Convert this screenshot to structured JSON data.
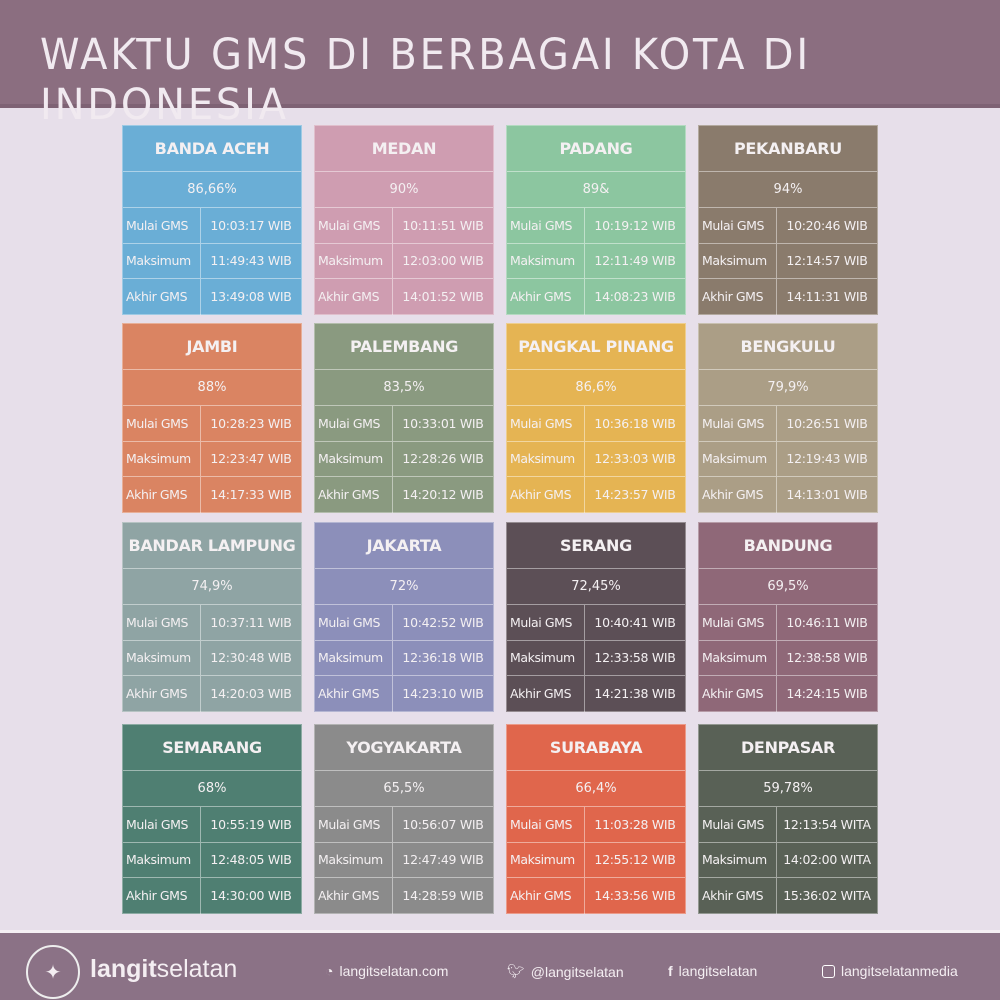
{
  "header": {
    "title": "WAKTU GMS DI BERBAGAI KOTA DI INDONESIA"
  },
  "labels": {
    "start": "Mulai GMS",
    "max": "Maksimum",
    "end": "Akhir GMS"
  },
  "cities": [
    {
      "name": "BANDA ACEH",
      "pct": "86,66%",
      "start": "10:03:17 WIB",
      "max": "11:49:43 WIB",
      "end": "13:49:08 WIB",
      "color": "#6aaed6"
    },
    {
      "name": "MEDAN",
      "pct": "90%",
      "start": "10:11:51 WIB",
      "max": "12:03:00 WIB",
      "end": "14:01:52 WIB",
      "color": "#cf9db1"
    },
    {
      "name": "PADANG",
      "pct": "89&",
      "start": "10:19:12 WIB",
      "max": "12:11:49 WIB",
      "end": "14:08:23 WIB",
      "color": "#8cc6a0"
    },
    {
      "name": "PEKANBARU",
      "pct": "94%",
      "start": "10:20:46 WIB",
      "max": "12:14:57 WIB",
      "end": "14:11:31 WIB",
      "color": "#8a7b6c"
    },
    {
      "name": "JAMBI",
      "pct": "88%",
      "start": "10:28:23 WIB",
      "max": "12:23:47 WIB",
      "end": "14:17:33 WIB",
      "color": "#da8462"
    },
    {
      "name": "PALEMBANG",
      "pct": "83,5%",
      "start": "10:33:01 WIB",
      "max": "12:28:26 WIB",
      "end": "14:20:12 WIB",
      "color": "#8a9a80"
    },
    {
      "name": "PANGKAL PINANG",
      "pct": "86,6%",
      "start": "10:36:18 WIB",
      "max": "12:33:03 WIB",
      "end": "14:23:57 WIB",
      "color": "#e5b453"
    },
    {
      "name": "BENGKULU",
      "pct": "79,9%",
      "start": "10:26:51 WIB",
      "max": "12:19:43 WIB",
      "end": "14:13:01 WIB",
      "color": "#ab9e86"
    },
    {
      "name": "BANDAR LAMPUNG",
      "pct": "74,9%",
      "start": "10:37:11 WIB",
      "max": "12:30:48 WIB",
      "end": "14:20:03 WIB",
      "color": "#8fa4a4"
    },
    {
      "name": "JAKARTA",
      "pct": "72%",
      "start": "10:42:52 WIB",
      "max": "12:36:18 WIB",
      "end": "14:23:10 WIB",
      "color": "#8c8fba"
    },
    {
      "name": "SERANG",
      "pct": "72,45%",
      "start": "10:40:41 WIB",
      "max": "12:33:58 WIB",
      "end": "14:21:38 WIB",
      "color": "#5c4f56"
    },
    {
      "name": "BANDUNG",
      "pct": "69,5%",
      "start": "10:46:11 WIB",
      "max": "12:38:58 WIB",
      "end": "14:24:15 WIB",
      "color": "#8f6878"
    },
    {
      "name": "SEMARANG",
      "pct": "68%",
      "start": "10:55:19 WIB",
      "max": "12:48:05 WIB",
      "end": "14:30:00 WIB",
      "color": "#4f7f72"
    },
    {
      "name": "YOGYAKARTA",
      "pct": "65,5%",
      "start": "10:56:07 WIB",
      "max": "12:47:49 WIB",
      "end": "14:28:59 WIB",
      "color": "#8b8b8b"
    },
    {
      "name": "SURABAYA",
      "pct": "66,4%",
      "start": "11:03:28 WIB",
      "max": "12:55:12 WIB",
      "end": "14:33:56 WIB",
      "color": "#e0664c"
    },
    {
      "name": "DENPASAR",
      "pct": "59,78%",
      "start": "12:13:54 WITA",
      "max": "14:02:00 WITA",
      "end": "15:36:02 WITA",
      "color": "#596156"
    }
  ],
  "footer": {
    "brand_bold": "langit",
    "brand_light": "selatan",
    "website": "langitselatan.com",
    "twitter": "@langitselatan",
    "facebook": "langitselatan",
    "instagram": "langitselatanmedia",
    "icons": [
      "rss-icon",
      "twitter-icon",
      "facebook-icon",
      "instagram-icon"
    ]
  }
}
